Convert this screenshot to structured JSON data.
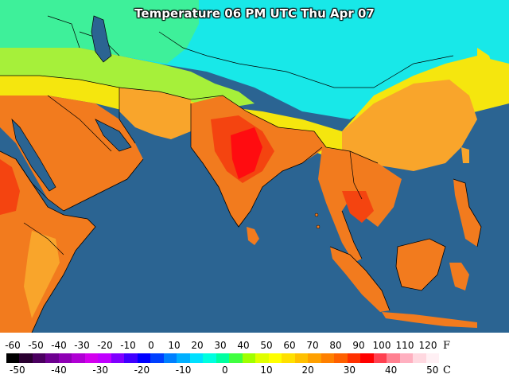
{
  "title": "Temperature 06 PM UTC Thu Apr 07",
  "legend": {
    "f_unit": "F",
    "c_unit": "C",
    "f_ticks": [
      "-60",
      "-50",
      "-40",
      "-30",
      "-20",
      "-10",
      "0",
      "10",
      "20",
      "30",
      "40",
      "50",
      "60",
      "70",
      "80",
      "90",
      "100",
      "110",
      "120"
    ],
    "c_ticks": [
      "-50",
      "-40",
      "-30",
      "-20",
      "-10",
      "0",
      "10",
      "20",
      "30",
      "40",
      "50"
    ],
    "colors": [
      "#000000",
      "#2a0030",
      "#4b0060",
      "#6d0090",
      "#8e00b4",
      "#b000d4",
      "#d300ee",
      "#c000ff",
      "#8000ff",
      "#4000ff",
      "#0000ff",
      "#0040ff",
      "#0080ff",
      "#00b0ff",
      "#00e0ff",
      "#00ffe0",
      "#00ffa0",
      "#40ff40",
      "#a0ff00",
      "#e0ff00",
      "#ffff00",
      "#ffe000",
      "#ffc000",
      "#ffa000",
      "#ff8000",
      "#ff6000",
      "#ff3000",
      "#ff0000",
      "#ff4050",
      "#ff8090",
      "#ffb0c0",
      "#ffd8e0",
      "#fff0f4"
    ]
  },
  "colors": {
    "ocean": "#2b6492",
    "cold": "#18e8e8",
    "cool": "#4df08a",
    "mild": "#b8f03a",
    "warm": "#f5e60e",
    "hot": "#f9a52b",
    "hotter": "#f27b1e",
    "hottest": "#f44410",
    "extreme": "#ff0c10"
  }
}
